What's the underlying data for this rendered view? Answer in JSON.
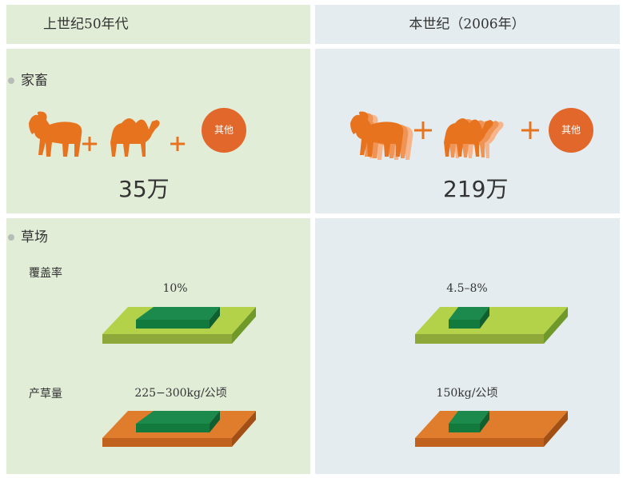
{
  "columns": [
    {
      "heading": "上世纪50年代",
      "other_label": "其他",
      "livestock_total": "35万",
      "coverage": "10%",
      "yield": "225−300kg/公顷"
    },
    {
      "heading": "本世纪（2006年）",
      "other_label": "其他",
      "livestock_total": "219万",
      "coverage": "4.5–8%",
      "yield": "150kg/公顷"
    }
  ],
  "sections": {
    "livestock": "家畜",
    "grassland": "草场"
  },
  "rows": {
    "coverage": "覆盖率",
    "yield": "产草量"
  }
}
